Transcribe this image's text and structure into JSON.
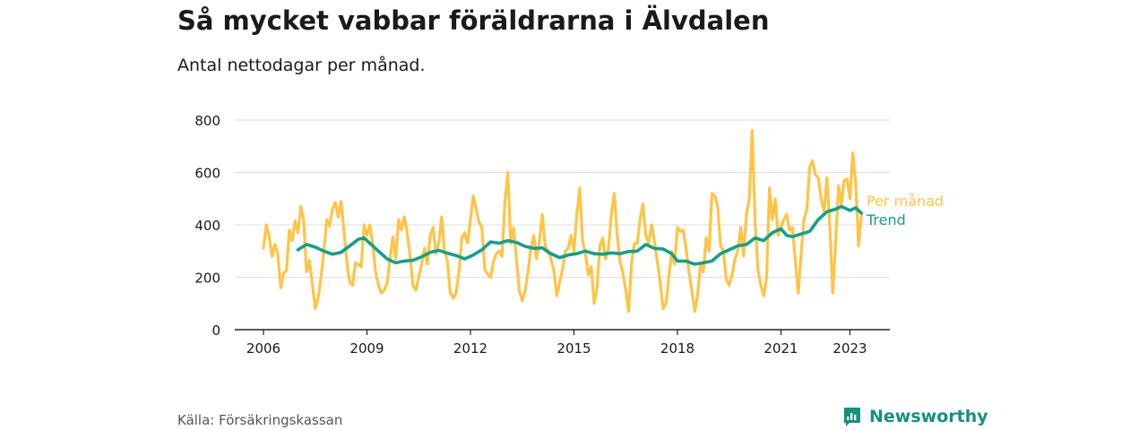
{
  "title": "Så mycket vabbar föräldrarna i Älvdalen",
  "subtitle": "Antal nettodagar per månad.",
  "source": "Källa: Försäkringskassan",
  "brand": "Newsworthy",
  "colors": {
    "monthly": "#ffc445",
    "trend": "#13a08a",
    "grid": "#dddddd",
    "axis": "#222222",
    "text": "#1a1a1a",
    "brand": "#13917f"
  },
  "chart_data": {
    "type": "line",
    "title": "",
    "xlabel": "",
    "ylabel": "",
    "xlim": [
      "2006-01",
      "2023-12"
    ],
    "ylim": [
      0,
      800
    ],
    "yticks": [
      0,
      200,
      400,
      600,
      800
    ],
    "xticks": [
      "2006",
      "2009",
      "2012",
      "2015",
      "2018",
      "2021",
      "2023"
    ],
    "grid": "horizontal",
    "legend": "inline-right",
    "series": [
      {
        "name": "Per månad",
        "color": "#ffc445",
        "points": [
          [
            "2006-01",
            310
          ],
          [
            "2006-02",
            400
          ],
          [
            "2006-03",
            355
          ],
          [
            "2006-04",
            280
          ],
          [
            "2006-05",
            325
          ],
          [
            "2006-06",
            290
          ],
          [
            "2006-07",
            160
          ],
          [
            "2006-08",
            215
          ],
          [
            "2006-09",
            225
          ],
          [
            "2006-10",
            380
          ],
          [
            "2006-11",
            340
          ],
          [
            "2006-12",
            415
          ],
          [
            "2007-01",
            370
          ],
          [
            "2007-02",
            470
          ],
          [
            "2007-03",
            420
          ],
          [
            "2007-04",
            220
          ],
          [
            "2007-05",
            265
          ],
          [
            "2007-06",
            175
          ],
          [
            "2007-07",
            80
          ],
          [
            "2007-08",
            120
          ],
          [
            "2007-09",
            200
          ],
          [
            "2007-10",
            300
          ],
          [
            "2007-11",
            420
          ],
          [
            "2007-12",
            395
          ],
          [
            "2008-01",
            460
          ],
          [
            "2008-02",
            485
          ],
          [
            "2008-03",
            430
          ],
          [
            "2008-04",
            490
          ],
          [
            "2008-05",
            380
          ],
          [
            "2008-06",
            260
          ],
          [
            "2008-07",
            180
          ],
          [
            "2008-08",
            170
          ],
          [
            "2008-09",
            255
          ],
          [
            "2008-10",
            250
          ],
          [
            "2008-11",
            240
          ],
          [
            "2008-12",
            400
          ],
          [
            "2009-01",
            360
          ],
          [
            "2009-02",
            400
          ],
          [
            "2009-03",
            330
          ],
          [
            "2009-04",
            220
          ],
          [
            "2009-05",
            170
          ],
          [
            "2009-06",
            140
          ],
          [
            "2009-07",
            150
          ],
          [
            "2009-08",
            180
          ],
          [
            "2009-09",
            270
          ],
          [
            "2009-10",
            355
          ],
          [
            "2009-11",
            270
          ],
          [
            "2009-12",
            420
          ],
          [
            "2010-01",
            380
          ],
          [
            "2010-02",
            430
          ],
          [
            "2010-03",
            370
          ],
          [
            "2010-04",
            280
          ],
          [
            "2010-05",
            170
          ],
          [
            "2010-06",
            150
          ],
          [
            "2010-07",
            200
          ],
          [
            "2010-08",
            250
          ],
          [
            "2010-09",
            310
          ],
          [
            "2010-10",
            250
          ],
          [
            "2010-11",
            360
          ],
          [
            "2010-12",
            390
          ],
          [
            "2011-01",
            290
          ],
          [
            "2011-02",
            330
          ],
          [
            "2011-03",
            430
          ],
          [
            "2011-04",
            300
          ],
          [
            "2011-05",
            260
          ],
          [
            "2011-06",
            140
          ],
          [
            "2011-07",
            120
          ],
          [
            "2011-08",
            140
          ],
          [
            "2011-09",
            220
          ],
          [
            "2011-10",
            350
          ],
          [
            "2011-11",
            370
          ],
          [
            "2011-12",
            330
          ],
          [
            "2012-01",
            420
          ],
          [
            "2012-02",
            510
          ],
          [
            "2012-03",
            460
          ],
          [
            "2012-04",
            410
          ],
          [
            "2012-05",
            390
          ],
          [
            "2012-06",
            230
          ],
          [
            "2012-07",
            210
          ],
          [
            "2012-08",
            200
          ],
          [
            "2012-09",
            260
          ],
          [
            "2012-10",
            290
          ],
          [
            "2012-11",
            300
          ],
          [
            "2012-12",
            280
          ],
          [
            "2013-01",
            490
          ],
          [
            "2013-02",
            600
          ],
          [
            "2013-03",
            330
          ],
          [
            "2013-04",
            390
          ],
          [
            "2013-05",
            270
          ],
          [
            "2013-06",
            150
          ],
          [
            "2013-07",
            110
          ],
          [
            "2013-08",
            150
          ],
          [
            "2013-09",
            220
          ],
          [
            "2013-10",
            310
          ],
          [
            "2013-11",
            360
          ],
          [
            "2013-12",
            270
          ],
          [
            "2014-01",
            340
          ],
          [
            "2014-02",
            440
          ],
          [
            "2014-03",
            320
          ],
          [
            "2014-04",
            300
          ],
          [
            "2014-05",
            270
          ],
          [
            "2014-06",
            230
          ],
          [
            "2014-07",
            130
          ],
          [
            "2014-08",
            180
          ],
          [
            "2014-09",
            230
          ],
          [
            "2014-10",
            300
          ],
          [
            "2014-11",
            310
          ],
          [
            "2014-12",
            360
          ],
          [
            "2015-01",
            300
          ],
          [
            "2015-02",
            440
          ],
          [
            "2015-03",
            540
          ],
          [
            "2015-04",
            340
          ],
          [
            "2015-05",
            290
          ],
          [
            "2015-06",
            210
          ],
          [
            "2015-07",
            240
          ],
          [
            "2015-08",
            100
          ],
          [
            "2015-09",
            160
          ],
          [
            "2015-10",
            320
          ],
          [
            "2015-11",
            350
          ],
          [
            "2015-12",
            270
          ],
          [
            "2016-01",
            310
          ],
          [
            "2016-02",
            440
          ],
          [
            "2016-03",
            520
          ],
          [
            "2016-04",
            370
          ],
          [
            "2016-05",
            260
          ],
          [
            "2016-06",
            220
          ],
          [
            "2016-07",
            150
          ],
          [
            "2016-08",
            70
          ],
          [
            "2016-09",
            250
          ],
          [
            "2016-10",
            330
          ],
          [
            "2016-11",
            330
          ],
          [
            "2016-12",
            420
          ],
          [
            "2017-01",
            480
          ],
          [
            "2017-02",
            360
          ],
          [
            "2017-03",
            330
          ],
          [
            "2017-04",
            400
          ],
          [
            "2017-05",
            340
          ],
          [
            "2017-06",
            260
          ],
          [
            "2017-07",
            180
          ],
          [
            "2017-08",
            80
          ],
          [
            "2017-09",
            100
          ],
          [
            "2017-10",
            200
          ],
          [
            "2017-11",
            300
          ],
          [
            "2017-12",
            250
          ],
          [
            "2018-01",
            390
          ],
          [
            "2018-02",
            375
          ],
          [
            "2018-03",
            380
          ],
          [
            "2018-04",
            310
          ],
          [
            "2018-05",
            220
          ],
          [
            "2018-06",
            150
          ],
          [
            "2018-07",
            70
          ],
          [
            "2018-08",
            130
          ],
          [
            "2018-09",
            250
          ],
          [
            "2018-10",
            220
          ],
          [
            "2018-11",
            350
          ],
          [
            "2018-12",
            300
          ],
          [
            "2019-01",
            520
          ],
          [
            "2019-02",
            510
          ],
          [
            "2019-03",
            470
          ],
          [
            "2019-04",
            320
          ],
          [
            "2019-05",
            300
          ],
          [
            "2019-06",
            190
          ],
          [
            "2019-07",
            170
          ],
          [
            "2019-08",
            210
          ],
          [
            "2019-09",
            270
          ],
          [
            "2019-10",
            300
          ],
          [
            "2019-11",
            390
          ],
          [
            "2019-12",
            280
          ],
          [
            "2020-01",
            440
          ],
          [
            "2020-02",
            500
          ],
          [
            "2020-03",
            760
          ],
          [
            "2020-04",
            420
          ],
          [
            "2020-05",
            230
          ],
          [
            "2020-06",
            170
          ],
          [
            "2020-07",
            130
          ],
          [
            "2020-08",
            200
          ],
          [
            "2020-09",
            540
          ],
          [
            "2020-10",
            420
          ],
          [
            "2020-11",
            500
          ],
          [
            "2020-12",
            360
          ],
          [
            "2021-01",
            390
          ],
          [
            "2021-02",
            420
          ],
          [
            "2021-03",
            440
          ],
          [
            "2021-04",
            380
          ],
          [
            "2021-05",
            390
          ],
          [
            "2021-06",
            260
          ],
          [
            "2021-07",
            140
          ],
          [
            "2021-08",
            290
          ],
          [
            "2021-09",
            420
          ],
          [
            "2021-10",
            460
          ],
          [
            "2021-11",
            620
          ],
          [
            "2021-12",
            645
          ],
          [
            "2022-01",
            590
          ],
          [
            "2022-02",
            580
          ],
          [
            "2022-03",
            500
          ],
          [
            "2022-04",
            450
          ],
          [
            "2022-05",
            580
          ],
          [
            "2022-06",
            400
          ],
          [
            "2022-07",
            140
          ],
          [
            "2022-08",
            330
          ],
          [
            "2022-09",
            550
          ],
          [
            "2022-10",
            480
          ],
          [
            "2022-11",
            570
          ],
          [
            "2022-12",
            575
          ],
          [
            "2023-01",
            500
          ],
          [
            "2023-02",
            675
          ],
          [
            "2023-03",
            560
          ],
          [
            "2023-04",
            320
          ],
          [
            "2023-05",
            440
          ]
        ]
      },
      {
        "name": "Trend",
        "color": "#13a08a",
        "points": [
          [
            "2007-01",
            305
          ],
          [
            "2007-04",
            325
          ],
          [
            "2007-07",
            315
          ],
          [
            "2007-10",
            300
          ],
          [
            "2008-01",
            288
          ],
          [
            "2008-04",
            295
          ],
          [
            "2008-07",
            320
          ],
          [
            "2008-10",
            345
          ],
          [
            "2008-12",
            350
          ],
          [
            "2009-02",
            330
          ],
          [
            "2009-05",
            300
          ],
          [
            "2009-08",
            270
          ],
          [
            "2009-11",
            255
          ],
          [
            "2010-02",
            262
          ],
          [
            "2010-05",
            265
          ],
          [
            "2010-08",
            278
          ],
          [
            "2010-11",
            295
          ],
          [
            "2011-02",
            303
          ],
          [
            "2011-05",
            292
          ],
          [
            "2011-08",
            283
          ],
          [
            "2011-11",
            270
          ],
          [
            "2012-02",
            285
          ],
          [
            "2012-05",
            305
          ],
          [
            "2012-08",
            335
          ],
          [
            "2012-11",
            330
          ],
          [
            "2013-02",
            340
          ],
          [
            "2013-05",
            333
          ],
          [
            "2013-08",
            318
          ],
          [
            "2013-11",
            310
          ],
          [
            "2014-02",
            312
          ],
          [
            "2014-05",
            290
          ],
          [
            "2014-08",
            275
          ],
          [
            "2014-11",
            285
          ],
          [
            "2015-02",
            290
          ],
          [
            "2015-05",
            300
          ],
          [
            "2015-08",
            290
          ],
          [
            "2015-11",
            288
          ],
          [
            "2016-02",
            293
          ],
          [
            "2016-05",
            290
          ],
          [
            "2016-08",
            298
          ],
          [
            "2016-11",
            300
          ],
          [
            "2017-02",
            325
          ],
          [
            "2017-05",
            310
          ],
          [
            "2017-08",
            308
          ],
          [
            "2017-11",
            290
          ],
          [
            "2018-01",
            262
          ],
          [
            "2018-04",
            262
          ],
          [
            "2018-07",
            250
          ],
          [
            "2018-10",
            255
          ],
          [
            "2019-01",
            262
          ],
          [
            "2019-04",
            290
          ],
          [
            "2019-07",
            305
          ],
          [
            "2019-10",
            320
          ],
          [
            "2020-01",
            325
          ],
          [
            "2020-04",
            350
          ],
          [
            "2020-07",
            340
          ],
          [
            "2020-10",
            370
          ],
          [
            "2021-01",
            385
          ],
          [
            "2021-03",
            360
          ],
          [
            "2021-05",
            355
          ],
          [
            "2021-08",
            365
          ],
          [
            "2021-11",
            375
          ],
          [
            "2022-02",
            420
          ],
          [
            "2022-05",
            450
          ],
          [
            "2022-08",
            460
          ],
          [
            "2022-10",
            470
          ],
          [
            "2023-01",
            455
          ],
          [
            "2023-03",
            465
          ],
          [
            "2023-05",
            445
          ]
        ]
      }
    ]
  }
}
